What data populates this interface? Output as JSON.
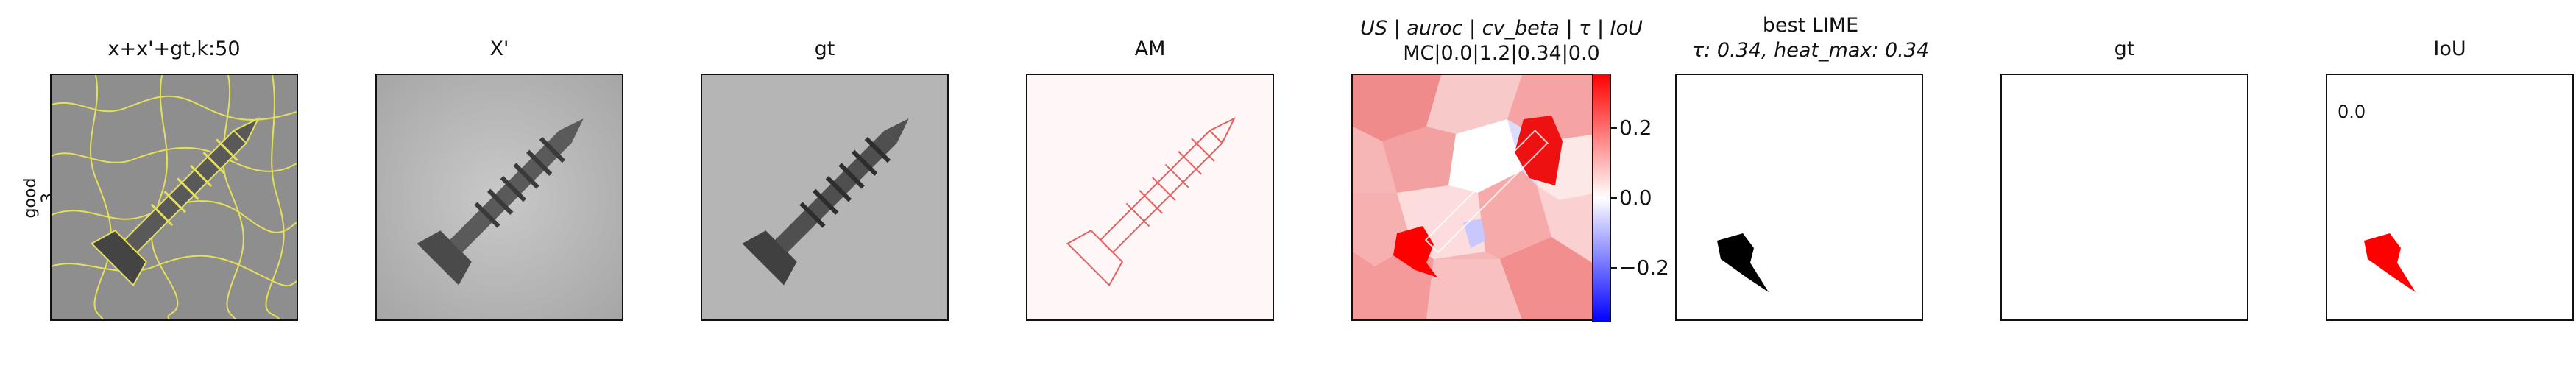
{
  "side_label": {
    "line1": "good",
    "line2": "3"
  },
  "panels": [
    {
      "title": "x+x'+gt,k:50"
    },
    {
      "title": "X'"
    },
    {
      "title": "gt"
    },
    {
      "title": "AM"
    },
    {
      "title_line1": "US | auroc | cv_beta | τ | IoU",
      "title_line2": "MC|0.0|1.2|0.34|0.0"
    },
    {
      "title_line1": "best LIME",
      "title_line2": "τ: 0.34, heat_max: 0.34"
    },
    {
      "title": "gt"
    },
    {
      "title": "IoU",
      "value": "0.0"
    }
  ],
  "colorbar": {
    "ticks": [
      "0.2",
      "0.0",
      "−0.2"
    ],
    "colors": [
      "#ff0000",
      "#ffffff",
      "#0000ff"
    ]
  }
}
